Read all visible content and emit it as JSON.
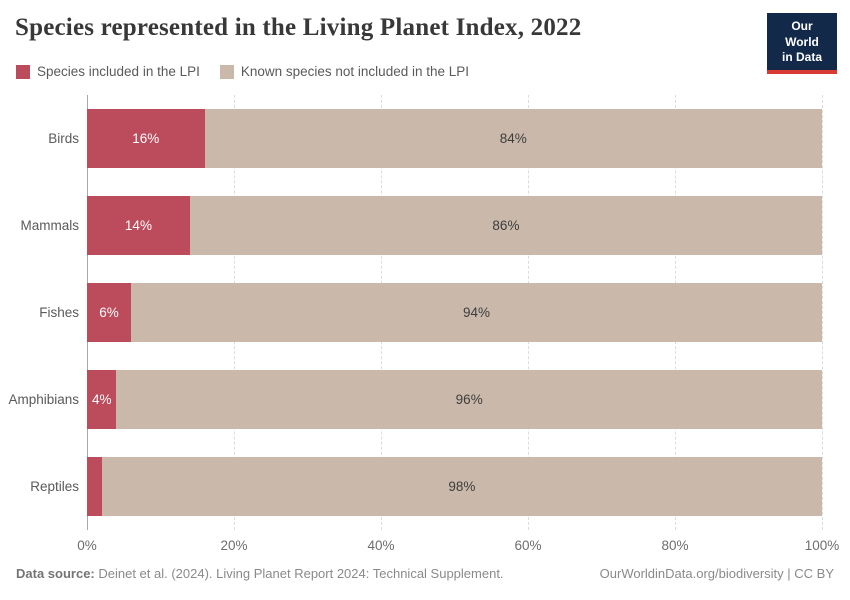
{
  "header": {
    "title": "Species represented in the Living Planet Index, 2022"
  },
  "logo": {
    "line1": "Our World",
    "line2": "in Data",
    "bg_color": "#12294a",
    "accent_color": "#d93a34"
  },
  "legend": [
    {
      "label": "Species included in the LPI",
      "color": "#bc4b5c"
    },
    {
      "label": "Known species not included in the LPI",
      "color": "#cab9aa"
    }
  ],
  "chart_data": {
    "type": "bar",
    "orientation": "horizontal",
    "stacked": true,
    "title": "Species represented in the Living Planet Index, 2022",
    "categories": [
      "Birds",
      "Mammals",
      "Fishes",
      "Amphibians",
      "Reptiles"
    ],
    "series": [
      {
        "name": "Species included in the LPI",
        "color": "#bc4b5c",
        "values": [
          16,
          14,
          6,
          4,
          2
        ],
        "labels": [
          "16%",
          "14%",
          "6%",
          "4%",
          ""
        ],
        "label_color": "#ffffff"
      },
      {
        "name": "Known species not included in the LPI",
        "color": "#cab9aa",
        "values": [
          84,
          86,
          94,
          96,
          98
        ],
        "labels": [
          "84%",
          "86%",
          "94%",
          "96%",
          "98%"
        ],
        "label_color": "#3d3d3d"
      }
    ],
    "x_ticks": [
      "0%",
      "20%",
      "40%",
      "60%",
      "80%",
      "100%"
    ],
    "xlim": [
      0,
      100
    ],
    "grid": "dashed-vertical",
    "legend_position": "top-left"
  },
  "footer": {
    "source_label": "Data source:",
    "source_text": " Deinet et al. (2024). Living Planet Report 2024: Technical Supplement.",
    "credit": "OurWorldinData.org/biodiversity | CC BY"
  }
}
